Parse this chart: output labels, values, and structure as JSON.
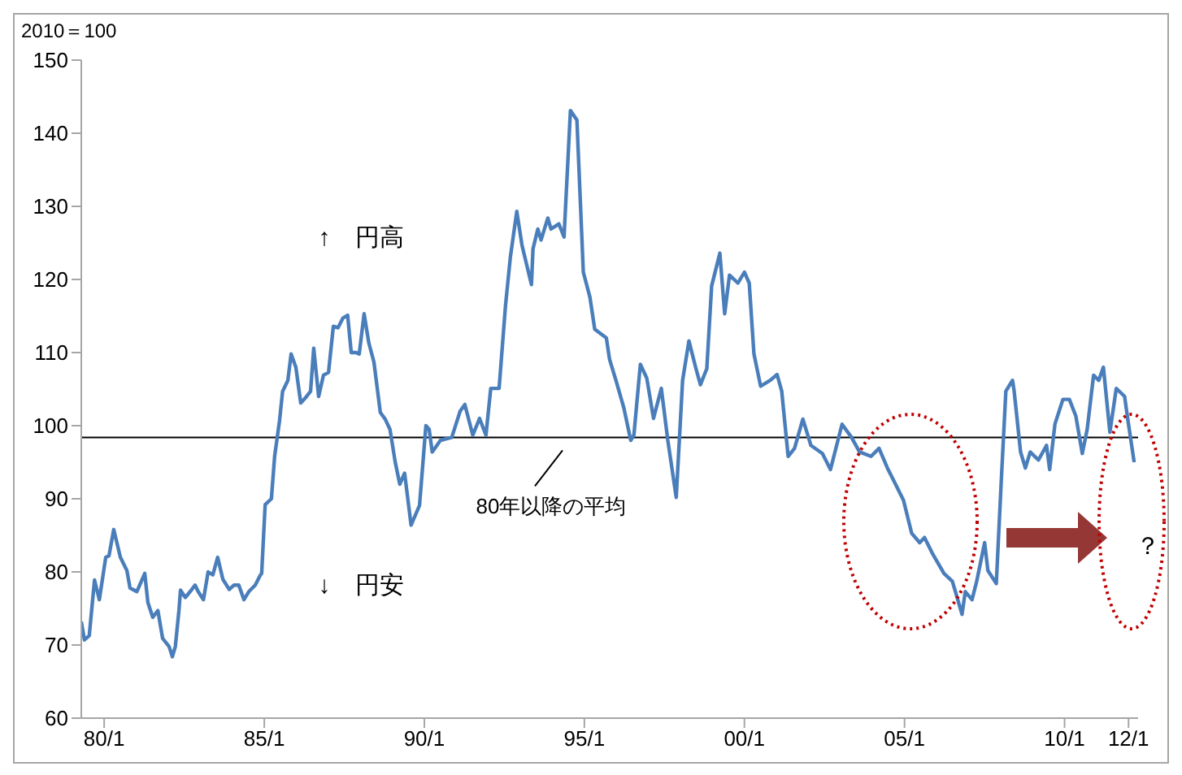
{
  "chart_data": {
    "type": "line",
    "ylabel": "2010＝100",
    "x": [
      "1979-04-15",
      "1979-05-21",
      "1979-07-15",
      "1979-09-13",
      "1979-11-07",
      "1980-01-19",
      "1980-02-25",
      "1980-04-19",
      "1980-07-04",
      "1980-09-16",
      "1980-10-22",
      "1981-01-08",
      "1981-04-08",
      "1981-05-14",
      "1981-07-08",
      "1981-09-05",
      "1981-10-29",
      "1982-01-11",
      "1982-02-17",
      "1982-03-23",
      "1982-05-03",
      "1982-05-21",
      "1982-07-15",
      "1982-09-27",
      "1982-11-03",
      "1982-12-09",
      "1983-02-07",
      "1983-04-01",
      "1983-05-25",
      "1983-07-19",
      "1983-09-16",
      "1983-11-28",
      "1984-01-22",
      "1984-03-16",
      "1984-05-14",
      "1984-07-08",
      "1984-09-20",
      "1984-11-14",
      "1984-12-02",
      "1985-01-11",
      "1985-03-23",
      "1985-04-29",
      "1985-06-23",
      "1985-07-29",
      "1985-09-27",
      "1985-11-03",
      "1985-12-27",
      "1986-02-21",
      "1986-04-15",
      "1986-06-13",
      "1986-07-19",
      "1986-09-13",
      "1986-11-07",
      "1987-01-04",
      "1987-02-28",
      "1987-04-22",
      "1987-06-16",
      "1987-08-10",
      "1987-09-20",
      "1987-11-14",
      "1987-12-20",
      "1988-02-14",
      "1988-04-08",
      "1988-06-05",
      "1988-08-17",
      "1988-10-11",
      "1988-12-05",
      "1989-02-03",
      "1989-03-27",
      "1989-05-21",
      "1989-08-03",
      "1989-11-07",
      "1990-01-19",
      "1990-02-25",
      "1990-04-01",
      "1990-07-04",
      "1990-11-10",
      "1991-02-14",
      "1991-04-08",
      "1991-07-08",
      "1991-09-23",
      "1991-12-05",
      "1992-01-29",
      "1992-05-03",
      "1992-07-15",
      "1992-09-09",
      "1992-11-21",
      "1993-01-19",
      "1993-05-07",
      "1993-05-25",
      "1993-07-19",
      "1993-08-25",
      "1993-11-10",
      "1993-12-16",
      "1994-03-16",
      "1994-05-14",
      "1994-07-26",
      "1994-10-08",
      "1994-12-20",
      "1995-03-05",
      "1995-04-29",
      "1995-09-09",
      "1995-10-15",
      "1995-12-27",
      "1996-03-27",
      "1996-06-13",
      "1996-07-19",
      "1996-10-01",
      "1996-12-13",
      "1997-02-28",
      "1997-05-28",
      "1997-08-10",
      "1997-11-14",
      "1998-01-26",
      "1998-04-08",
      "1998-06-23",
      "1998-08-17",
      "1998-10-29",
      "1998-12-23",
      "1999-03-27",
      "1999-05-21",
      "1999-07-15",
      "1999-10-19",
      "2000-01-01",
      "2000-02-25",
      "2000-04-19",
      "2000-07-04",
      "2000-10-22",
      "2001-01-08",
      "2001-03-02",
      "2001-05-14",
      "2001-07-26",
      "2001-10-29",
      "2002-01-29",
      "2002-06-09",
      "2002-09-09",
      "2003-01-19",
      "2003-05-07",
      "2003-08-07",
      "2003-12-16",
      "2004-03-16",
      "2004-06-20",
      "2004-08-14",
      "2004-12-20",
      "2005-03-23",
      "2005-06-23",
      "2005-08-17",
      "2005-11-21",
      "2006-03-27",
      "2006-07-01",
      "2006-10-19",
      "2006-11-25",
      "2007-02-10",
      "2007-04-04",
      "2007-07-04",
      "2007-08-10",
      "2007-11-14",
      "2008-01-08",
      "2008-03-02",
      "2008-05-17",
      "2008-06-05",
      "2008-08-17",
      "2008-10-11",
      "2008-12-05",
      "2009-03-09",
      "2009-06-09",
      "2009-07-15",
      "2009-09-13",
      "2009-12-13",
      "2010-02-25",
      "2010-05-10",
      "2010-07-22",
      "2010-09-16",
      "2010-11-28",
      "2011-01-26",
      "2011-03-20",
      "2011-06-02",
      "2011-08-14",
      "2011-11-17",
      "2011-12-23",
      "2012-03-05"
    ],
    "series": [
      {
        "color": "#4a7ebb",
        "values": [
          73.2,
          70.7,
          71.3,
          78.9,
          76.2,
          82,
          82.2,
          85.8,
          82,
          80.2,
          77.8,
          77.3,
          79.8,
          75.8,
          73.8,
          74.7,
          70.9,
          69.8,
          68.4,
          69.8,
          74.7,
          77.5,
          76.5,
          77.6,
          78.2,
          77.3,
          76.2,
          80,
          79.6,
          82,
          79,
          77.6,
          78.2,
          78.2,
          76.2,
          77.3,
          78.2,
          79.5,
          79.8,
          89.2,
          90,
          95.8,
          100.6,
          104.7,
          106.2,
          109.8,
          108,
          103.1,
          103.8,
          104.7,
          110.6,
          104,
          106.9,
          107.3,
          113.6,
          113.4,
          114.7,
          115.1,
          110,
          110,
          109.8,
          115.3,
          111.3,
          108.7,
          101.8,
          100.9,
          99.5,
          95,
          92,
          93.5,
          86.4,
          89.1,
          100,
          99.5,
          96.4,
          98,
          98.4,
          102,
          102.9,
          98.7,
          101,
          98.7,
          105.1,
          105.1,
          116.4,
          123.1,
          129.3,
          124.7,
          119.3,
          124.2,
          126.9,
          125.4,
          128.4,
          126.9,
          127.6,
          125.8,
          143.1,
          141.8,
          121,
          117.6,
          113.2,
          112,
          109.1,
          106.2,
          102.4,
          98,
          98.7,
          108.4,
          106.5,
          101,
          105.1,
          98,
          90.2,
          106.2,
          111.6,
          108,
          105.6,
          107.8,
          119.1,
          123.6,
          115.3,
          120.6,
          119.5,
          121,
          119.5,
          109.8,
          105.4,
          106.2,
          107,
          104.7,
          95.8,
          96.9,
          100.9,
          97.3,
          96.2,
          94,
          100.2,
          98.4,
          96.4,
          95.8,
          96.9,
          94.2,
          92.9,
          89.8,
          85.3,
          84,
          84.7,
          82.4,
          79.8,
          78.7,
          74.2,
          77.3,
          76.2,
          78.7,
          84,
          80.2,
          78.4,
          92,
          104.7,
          106.2,
          104.7,
          96.4,
          94.2,
          96.4,
          95.3,
          97.3,
          94,
          100.2,
          103.6,
          103.6,
          101.3,
          96.2,
          99.5,
          106.9,
          106.2,
          108,
          99.1,
          105.1,
          104,
          100.9,
          95
        ]
      }
    ],
    "xlim": [
      "1979-04-15",
      "2012-04-19"
    ],
    "xticks": [
      {
        "value": "1980-01-01",
        "label": "80/1"
      },
      {
        "value": "1985-01-01",
        "label": "85/1"
      },
      {
        "value": "1990-01-01",
        "label": "90/1"
      },
      {
        "value": "1995-01-01",
        "label": "95/1"
      },
      {
        "value": "2000-01-01",
        "label": "00/1"
      },
      {
        "value": "2005-01-01",
        "label": "05/1"
      },
      {
        "value": "2010-01-01",
        "label": "10/1"
      },
      {
        "value": "2012-01-01",
        "label": "12/1"
      }
    ],
    "ylim": [
      60,
      150
    ],
    "yticks": [
      60,
      70,
      80,
      90,
      100,
      110,
      120,
      130,
      140,
      150
    ],
    "ref_lines": [
      {
        "axis": "y",
        "value": 98.4,
        "label": "80年以降の平均",
        "color": "#000000"
      }
    ],
    "annotations": [
      "↑　円高",
      "↓　円安",
      "？"
    ],
    "grid": false,
    "marker": "none",
    "line_style": "solid"
  }
}
